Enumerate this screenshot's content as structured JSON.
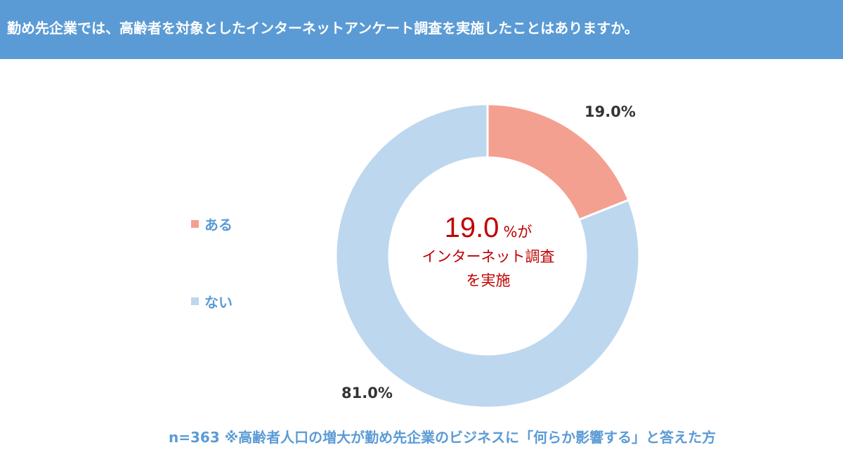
{
  "header": {
    "title": "勤め先企業では、高齢者を対象としたインターネットアンケート調査を実施したことはありますか。"
  },
  "chart_data": {
    "type": "pie",
    "donut": true,
    "categories": [
      "ある",
      "ない"
    ],
    "values": [
      19.0,
      81.0
    ],
    "value_labels": [
      "19.0%",
      "81.0%"
    ],
    "colors": [
      "#f4a090",
      "#bdd7ee"
    ],
    "legend_position": "left",
    "center_text": {
      "value": "19.0",
      "unit": "%が",
      "line2": "インターネット調査",
      "line3": "を実施"
    }
  },
  "footnote": "n=363 ※高齢者人口の増大が勤め先企業のビジネスに「何らか影響する」と答えた方"
}
